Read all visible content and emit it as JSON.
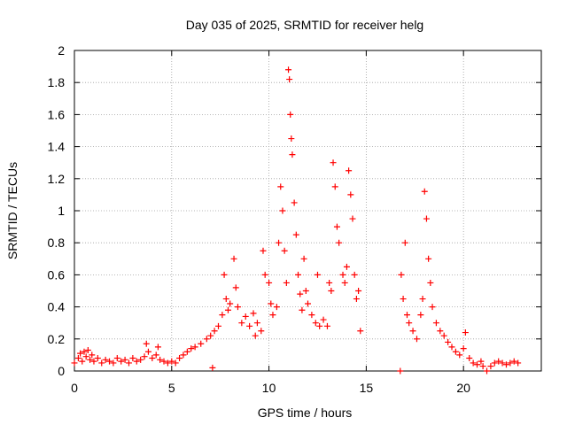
{
  "chart_data": {
    "type": "scatter",
    "title": "Day 035 of 2025, SRMTID for receiver helg",
    "xlabel": "GPS time / hours",
    "ylabel": "SRMTID / TECUs",
    "xlim": [
      0,
      24
    ],
    "ylim": [
      0,
      2
    ],
    "xticks": [
      0,
      5,
      10,
      15,
      20
    ],
    "xtick_labels": [
      "0",
      "5",
      "10",
      "15",
      "20"
    ],
    "yticks": [
      0,
      0.2,
      0.4,
      0.6,
      0.8,
      1,
      1.2,
      1.4,
      1.6,
      1.8,
      2
    ],
    "ytick_labels": [
      "0",
      "0.2",
      "0.4",
      "0.6",
      "0.8",
      "1",
      "1.2",
      "1.4",
      "1.6",
      "1.8",
      "2"
    ],
    "grid": true,
    "marker": "plus",
    "series": [
      {
        "name": "SRMTID",
        "color": "#ff0000",
        "points": [
          [
            0.0,
            0.05
          ],
          [
            0.2,
            0.08
          ],
          [
            0.3,
            0.11
          ],
          [
            0.4,
            0.06
          ],
          [
            0.5,
            0.12
          ],
          [
            0.6,
            0.09
          ],
          [
            0.7,
            0.13
          ],
          [
            0.8,
            0.07
          ],
          [
            0.9,
            0.1
          ],
          [
            1.0,
            0.06
          ],
          [
            1.2,
            0.08
          ],
          [
            1.4,
            0.05
          ],
          [
            1.6,
            0.07
          ],
          [
            1.8,
            0.06
          ],
          [
            2.0,
            0.05
          ],
          [
            2.2,
            0.08
          ],
          [
            2.4,
            0.06
          ],
          [
            2.6,
            0.07
          ],
          [
            2.8,
            0.05
          ],
          [
            3.0,
            0.08
          ],
          [
            3.2,
            0.06
          ],
          [
            3.4,
            0.07
          ],
          [
            3.6,
            0.09
          ],
          [
            3.7,
            0.17
          ],
          [
            3.8,
            0.12
          ],
          [
            4.0,
            0.08
          ],
          [
            4.2,
            0.1
          ],
          [
            4.3,
            0.15
          ],
          [
            4.4,
            0.07
          ],
          [
            4.6,
            0.06
          ],
          [
            4.8,
            0.05
          ],
          [
            5.0,
            0.06
          ],
          [
            5.2,
            0.05
          ],
          [
            5.4,
            0.08
          ],
          [
            5.6,
            0.1
          ],
          [
            5.8,
            0.12
          ],
          [
            6.0,
            0.14
          ],
          [
            6.2,
            0.15
          ],
          [
            6.5,
            0.17
          ],
          [
            6.8,
            0.2
          ],
          [
            7.0,
            0.22
          ],
          [
            7.1,
            0.02
          ],
          [
            7.2,
            0.25
          ],
          [
            7.4,
            0.28
          ],
          [
            7.6,
            0.35
          ],
          [
            7.7,
            0.6
          ],
          [
            7.8,
            0.45
          ],
          [
            7.9,
            0.38
          ],
          [
            8.0,
            0.42
          ],
          [
            8.2,
            0.7
          ],
          [
            8.3,
            0.52
          ],
          [
            8.4,
            0.4
          ],
          [
            8.6,
            0.3
          ],
          [
            8.8,
            0.34
          ],
          [
            9.0,
            0.28
          ],
          [
            9.2,
            0.36
          ],
          [
            9.3,
            0.22
          ],
          [
            9.4,
            0.3
          ],
          [
            9.6,
            0.25
          ],
          [
            9.7,
            0.75
          ],
          [
            9.8,
            0.6
          ],
          [
            10.0,
            0.55
          ],
          [
            10.1,
            0.42
          ],
          [
            10.2,
            0.35
          ],
          [
            10.4,
            0.4
          ],
          [
            10.5,
            0.8
          ],
          [
            10.6,
            1.15
          ],
          [
            10.7,
            1.0
          ],
          [
            10.8,
            0.75
          ],
          [
            10.9,
            0.55
          ],
          [
            11.0,
            1.88
          ],
          [
            11.05,
            1.82
          ],
          [
            11.1,
            1.6
          ],
          [
            11.15,
            1.45
          ],
          [
            11.2,
            1.35
          ],
          [
            11.3,
            1.05
          ],
          [
            11.4,
            0.85
          ],
          [
            11.5,
            0.6
          ],
          [
            11.6,
            0.48
          ],
          [
            11.7,
            0.38
          ],
          [
            11.8,
            0.7
          ],
          [
            11.9,
            0.5
          ],
          [
            12.0,
            0.42
          ],
          [
            12.2,
            0.35
          ],
          [
            12.4,
            0.3
          ],
          [
            12.5,
            0.6
          ],
          [
            12.6,
            0.28
          ],
          [
            12.8,
            0.32
          ],
          [
            13.0,
            0.28
          ],
          [
            13.1,
            0.55
          ],
          [
            13.2,
            0.5
          ],
          [
            13.3,
            1.3
          ],
          [
            13.4,
            1.15
          ],
          [
            13.5,
            0.9
          ],
          [
            13.6,
            0.8
          ],
          [
            13.8,
            0.6
          ],
          [
            13.9,
            0.55
          ],
          [
            14.0,
            0.65
          ],
          [
            14.1,
            1.25
          ],
          [
            14.2,
            1.1
          ],
          [
            14.3,
            0.95
          ],
          [
            14.4,
            0.6
          ],
          [
            14.5,
            0.45
          ],
          [
            14.6,
            0.5
          ],
          [
            14.7,
            0.25
          ],
          [
            16.75,
            0.0
          ],
          [
            16.8,
            0.6
          ],
          [
            16.9,
            0.45
          ],
          [
            17.0,
            0.8
          ],
          [
            17.1,
            0.35
          ],
          [
            17.2,
            0.3
          ],
          [
            17.4,
            0.25
          ],
          [
            17.6,
            0.2
          ],
          [
            17.8,
            0.35
          ],
          [
            17.9,
            0.45
          ],
          [
            18.0,
            1.12
          ],
          [
            18.1,
            0.95
          ],
          [
            18.2,
            0.7
          ],
          [
            18.3,
            0.55
          ],
          [
            18.4,
            0.4
          ],
          [
            18.6,
            0.3
          ],
          [
            18.8,
            0.25
          ],
          [
            19.0,
            0.22
          ],
          [
            19.2,
            0.18
          ],
          [
            19.4,
            0.15
          ],
          [
            19.6,
            0.12
          ],
          [
            19.8,
            0.1
          ],
          [
            20.0,
            0.14
          ],
          [
            20.1,
            0.24
          ],
          [
            20.3,
            0.08
          ],
          [
            20.5,
            0.05
          ],
          [
            20.7,
            0.04
          ],
          [
            20.9,
            0.06
          ],
          [
            21.0,
            0.03
          ],
          [
            21.2,
            0.0
          ],
          [
            21.4,
            0.03
          ],
          [
            21.6,
            0.05
          ],
          [
            21.8,
            0.06
          ],
          [
            22.0,
            0.05
          ],
          [
            22.2,
            0.04
          ],
          [
            22.4,
            0.05
          ],
          [
            22.6,
            0.06
          ],
          [
            22.8,
            0.05
          ]
        ]
      }
    ]
  }
}
